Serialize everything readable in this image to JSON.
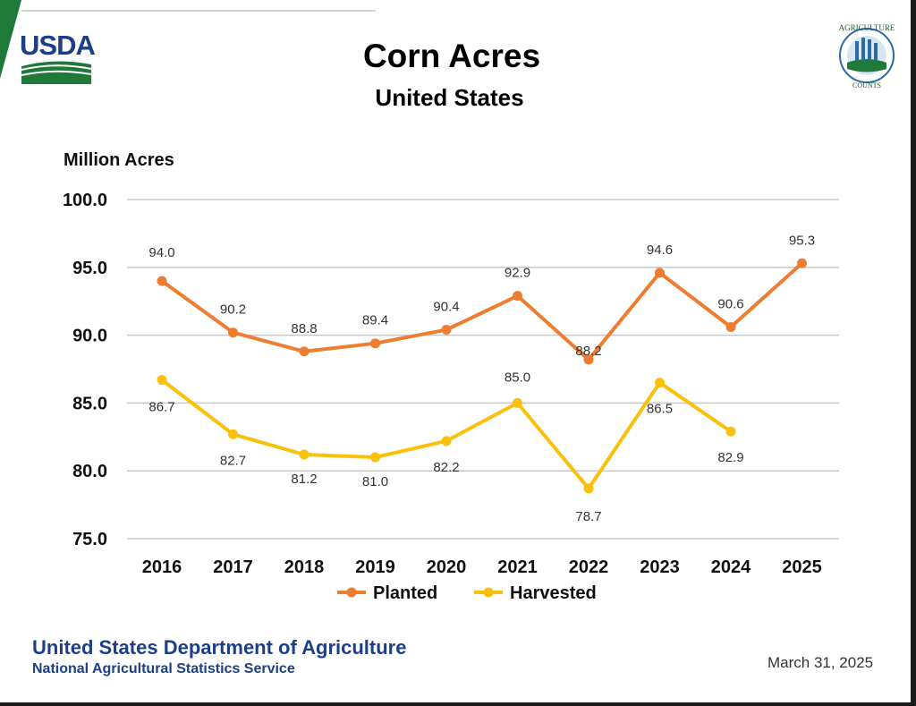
{
  "header": {
    "logo_text": "USDA",
    "seal_text_top": "AGRICULTURE",
    "seal_text_bottom": "COUNTS"
  },
  "footer": {
    "department": "United States Department of Agriculture",
    "service": "National Agricultural Statistics Service",
    "date": "March 31, 2025"
  },
  "colors": {
    "planted": "#ee7d31",
    "harvested": "#fbc10a",
    "usda_blue": "#1d3f87",
    "usda_green": "#1f7a3a"
  },
  "chart_data": {
    "type": "line",
    "title": "Corn Acres",
    "subtitle": "United States",
    "ylabel": "Million Acres",
    "xlabel": "",
    "ylim": [
      75,
      100
    ],
    "yticks": [
      "75.0",
      "80.0",
      "85.0",
      "90.0",
      "95.0",
      "100.0"
    ],
    "grid": true,
    "legend_position": "bottom",
    "categories": [
      "2016",
      "2017",
      "2018",
      "2019",
      "2020",
      "2021",
      "2022",
      "2023",
      "2024",
      "2025"
    ],
    "series": [
      {
        "name": "Planted",
        "color": "#ee7d31",
        "values": [
          94.0,
          90.2,
          88.8,
          89.4,
          90.4,
          92.9,
          88.2,
          94.6,
          90.6,
          95.3
        ],
        "labels": [
          "94.0",
          "90.2",
          "88.8",
          "89.4",
          "90.4",
          "92.9",
          "88.2",
          "94.6",
          "90.6",
          "95.3"
        ]
      },
      {
        "name": "Harvested",
        "color": "#fbc10a",
        "values": [
          86.7,
          82.7,
          81.2,
          81.0,
          82.2,
          85.0,
          78.7,
          86.5,
          82.9,
          null
        ],
        "labels": [
          "86.7",
          "82.7",
          "81.2",
          "81.0",
          "82.2",
          "85.0",
          "78.7",
          "86.5",
          "82.9",
          null
        ]
      }
    ]
  }
}
